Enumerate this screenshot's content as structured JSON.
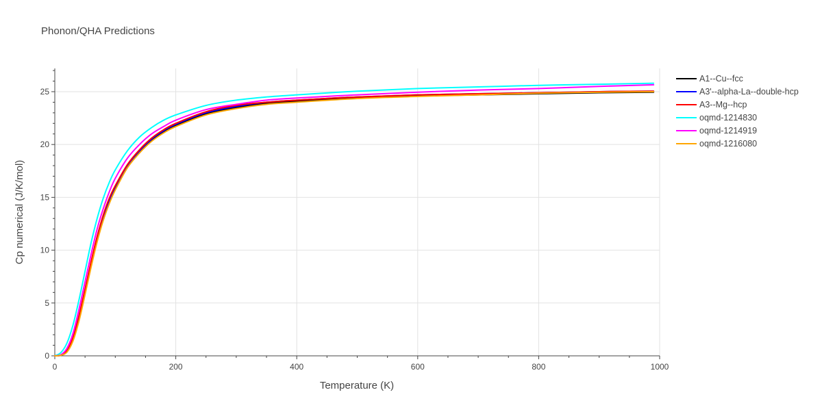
{
  "chart_data": {
    "type": "line",
    "title": "Phonon/QHA Predictions",
    "xlabel": "Temperature (K)",
    "ylabel": "Cp numerical (J/K/mol)",
    "xlim": [
      0,
      1000
    ],
    "ylim": [
      0,
      27.2
    ],
    "xticks": [
      0,
      200,
      400,
      600,
      800,
      1000
    ],
    "xtick_labels": [
      "0",
      "200",
      "400",
      "600",
      "800",
      "1000"
    ],
    "yticks": [
      0,
      5,
      10,
      15,
      20,
      25
    ],
    "ytick_labels": [
      "0",
      "5",
      "10",
      "15",
      "20",
      "25"
    ],
    "grid": true,
    "legend_position": "top-right outside",
    "x": [
      0,
      10,
      20,
      30,
      40,
      50,
      60,
      70,
      80,
      90,
      100,
      120,
      140,
      160,
      180,
      200,
      250,
      300,
      350,
      400,
      500,
      600,
      700,
      800,
      900,
      990
    ],
    "series": [
      {
        "name": "A1--Cu--fcc",
        "color": "#000000",
        "values": [
          0,
          0.05,
          0.4,
          1.5,
          3.5,
          6.0,
          8.6,
          11.0,
          13.0,
          14.6,
          15.9,
          17.9,
          19.3,
          20.4,
          21.2,
          21.8,
          22.9,
          23.5,
          23.9,
          24.1,
          24.4,
          24.6,
          24.7,
          24.8,
          24.9,
          24.95
        ]
      },
      {
        "name": "A3'--alpha-La--double-hcp",
        "color": "#0000ff",
        "values": [
          0,
          0.06,
          0.45,
          1.6,
          3.6,
          6.1,
          8.7,
          11.1,
          13.1,
          14.7,
          16.0,
          18.0,
          19.4,
          20.5,
          21.3,
          21.9,
          23.0,
          23.6,
          24.0,
          24.2,
          24.5,
          24.7,
          24.8,
          24.9,
          25.0,
          25.05
        ]
      },
      {
        "name": "A3--Mg--hcp",
        "color": "#ff0000",
        "values": [
          0,
          0.07,
          0.5,
          1.7,
          3.8,
          6.3,
          8.9,
          11.3,
          13.3,
          14.9,
          16.1,
          18.1,
          19.5,
          20.6,
          21.4,
          22.0,
          23.1,
          23.7,
          24.0,
          24.2,
          24.5,
          24.7,
          24.8,
          24.9,
          25.0,
          25.05
        ]
      },
      {
        "name": "oqmd-1214830",
        "color": "#00ffff",
        "values": [
          0,
          0.3,
          1.2,
          2.9,
          5.3,
          8.0,
          10.7,
          13.0,
          14.9,
          16.4,
          17.6,
          19.4,
          20.7,
          21.6,
          22.3,
          22.8,
          23.7,
          24.2,
          24.5,
          24.7,
          25.05,
          25.3,
          25.45,
          25.6,
          25.7,
          25.8
        ]
      },
      {
        "name": "oqmd-1214919",
        "color": "#ff00ff",
        "values": [
          0,
          0.1,
          0.7,
          2.1,
          4.4,
          7.0,
          9.6,
          12.0,
          13.9,
          15.5,
          16.8,
          18.7,
          20.0,
          21.0,
          21.7,
          22.3,
          23.3,
          23.8,
          24.2,
          24.4,
          24.7,
          24.95,
          25.15,
          25.3,
          25.5,
          25.65
        ]
      },
      {
        "name": "oqmd-1216080",
        "color": "#ffa500",
        "values": [
          0,
          0.05,
          0.35,
          1.4,
          3.3,
          5.8,
          8.4,
          10.8,
          12.8,
          14.4,
          15.7,
          17.8,
          19.2,
          20.3,
          21.1,
          21.7,
          22.8,
          23.4,
          23.8,
          24.0,
          24.35,
          24.55,
          24.7,
          24.85,
          24.95,
          25.0
        ]
      }
    ]
  }
}
